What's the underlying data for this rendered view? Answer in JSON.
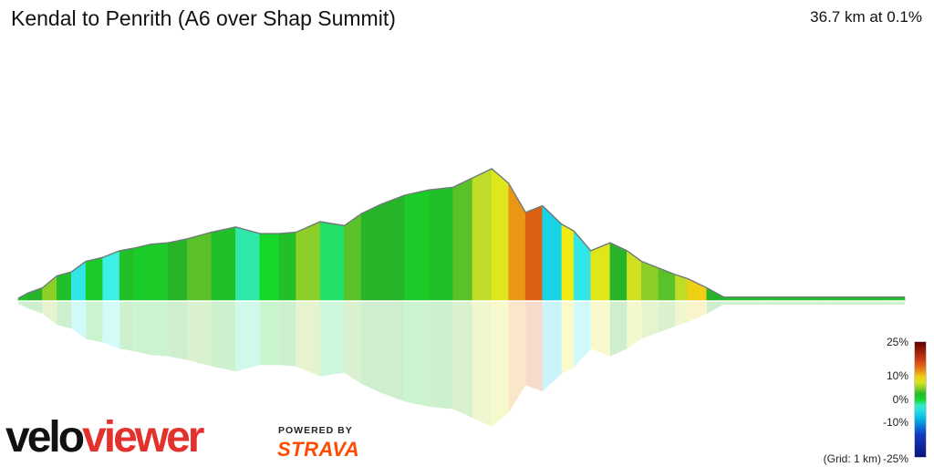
{
  "header": {
    "title": "Kendal to Penrith (A6 over Shap Summit)",
    "summary": "36.7 km at 0.1%"
  },
  "legend": {
    "labels": [
      "25%",
      "10%",
      "0%",
      "-10%",
      "-25%"
    ],
    "grid_note": "(Grid: 1 km)"
  },
  "branding": {
    "logo_velo": "velo",
    "logo_viewer": "viewer",
    "powered_by": "POWERED BY",
    "strava": "STRAVA"
  },
  "chart_data": {
    "type": "area",
    "title": "Kendal to Penrith (A6 over Shap Summit)",
    "distance_km": 36.7,
    "average_gradient_pct": 0.1,
    "xlabel": "",
    "ylabel": "",
    "color_scale": {
      "min_pct": -25,
      "max_pct": 25
    },
    "x_km": [
      0,
      0.4,
      1.0,
      1.6,
      2.2,
      2.8,
      3.5,
      4.2,
      4.8,
      5.5,
      6.2,
      7.0,
      8.0,
      9.0,
      10.0,
      10.8,
      11.5,
      12.5,
      13.5,
      14.2,
      15.0,
      16.0,
      17.0,
      18.0,
      18.8,
      19.6,
      20.3,
      21.0,
      21.7,
      22.5,
      23.0,
      23.7,
      24.5,
      25.2,
      25.8,
      26.5,
      27.2,
      27.7,
      28.5,
      29.2,
      30.0,
      30.8,
      31.3,
      32.0,
      32.8,
      33.5,
      34.3,
      35.0,
      35.7,
      36.2,
      36.7
    ],
    "elevation_rel": [
      0.02,
      0.06,
      0.1,
      0.19,
      0.22,
      0.3,
      0.33,
      0.38,
      0.4,
      0.43,
      0.44,
      0.47,
      0.52,
      0.56,
      0.51,
      0.51,
      0.52,
      0.6,
      0.57,
      0.66,
      0.73,
      0.8,
      0.84,
      0.86,
      0.93,
      1.0,
      0.89,
      0.67,
      0.72,
      0.58,
      0.53,
      0.38,
      0.44,
      0.38,
      0.3,
      0.25,
      0.2,
      0.17,
      0.1,
      0.03,
      0.03,
      0.03,
      0.03,
      0.03,
      0.03,
      0.03,
      0.03,
      0.03,
      0.03,
      0.03,
      0.03
    ],
    "gradient_pct": [
      2,
      3,
      5,
      2,
      -4,
      1,
      -3,
      2,
      1,
      1,
      3,
      4,
      2,
      -2,
      0,
      2,
      5,
      -1,
      4,
      3,
      3,
      1,
      2,
      4,
      6,
      8,
      12,
      15,
      -6,
      9,
      -4,
      8,
      3,
      7,
      5,
      4,
      6,
      10,
      3,
      2,
      2,
      2,
      2,
      2,
      2,
      2,
      2,
      2,
      2,
      2,
      2
    ]
  }
}
